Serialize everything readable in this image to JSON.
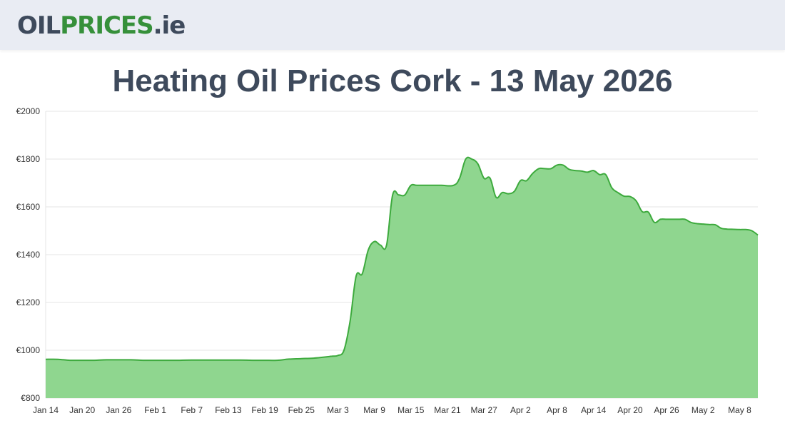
{
  "header": {
    "logo": {
      "part1": "OIL",
      "part2": "PRICES",
      "part3": ".ie"
    }
  },
  "colors": {
    "header_bg": "#e9ecf3",
    "logo_dark": "#3e4a5c",
    "logo_green": "#36903a",
    "line": "#3daa3d",
    "fill": "#8fd68f",
    "grid": "#e6e6e6"
  },
  "chart_data": {
    "type": "area",
    "title": "Heating Oil Prices Cork - 13 May 2026",
    "xlabel": "",
    "ylabel": "",
    "ylim": [
      800,
      2000
    ],
    "y_ticks": [
      800,
      1000,
      1200,
      1400,
      1600,
      1800,
      2000
    ],
    "y_tick_labels": [
      "€800",
      "€1000",
      "€1200",
      "€1400",
      "€1600",
      "€1800",
      "€2000"
    ],
    "grid": true,
    "legend": "none",
    "x_tick_labels": [
      "Jan 14",
      "Jan 20",
      "Jan 26",
      "Feb 1",
      "Feb 7",
      "Feb 13",
      "Feb 19",
      "Feb 25",
      "Mar 3",
      "Mar 9",
      "Mar 15",
      "Mar 21",
      "Mar 27",
      "Apr 2",
      "Apr 8",
      "Apr 14",
      "Apr 20",
      "Apr 26",
      "May 2",
      "May 8"
    ],
    "x_tick_every_days": 6,
    "series": [
      {
        "values": [
          [
            0,
            962
          ],
          [
            2,
            962
          ],
          [
            4,
            958
          ],
          [
            6,
            958
          ],
          [
            8,
            958
          ],
          [
            10,
            960
          ],
          [
            12,
            960
          ],
          [
            14,
            960
          ],
          [
            16,
            958
          ],
          [
            18,
            958
          ],
          [
            20,
            958
          ],
          [
            22,
            958
          ],
          [
            24,
            959
          ],
          [
            26,
            959
          ],
          [
            28,
            959
          ],
          [
            30,
            959
          ],
          [
            32,
            959
          ],
          [
            34,
            958
          ],
          [
            36,
            958
          ],
          [
            38,
            958
          ],
          [
            40,
            963
          ],
          [
            42,
            965
          ],
          [
            44,
            967
          ],
          [
            46,
            972
          ],
          [
            47,
            975
          ],
          [
            48,
            978
          ],
          [
            49,
            1000
          ],
          [
            50,
            1120
          ],
          [
            51,
            1310
          ],
          [
            52,
            1320
          ],
          [
            53,
            1420
          ],
          [
            54,
            1455
          ],
          [
            55,
            1440
          ],
          [
            56,
            1440
          ],
          [
            57,
            1650
          ],
          [
            58,
            1650
          ],
          [
            59,
            1650
          ],
          [
            60,
            1690
          ],
          [
            61,
            1690
          ],
          [
            63,
            1690
          ],
          [
            65,
            1690
          ],
          [
            67,
            1690
          ],
          [
            68,
            1720
          ],
          [
            69,
            1800
          ],
          [
            70,
            1800
          ],
          [
            71,
            1780
          ],
          [
            72,
            1720
          ],
          [
            73,
            1720
          ],
          [
            74,
            1640
          ],
          [
            75,
            1660
          ],
          [
            76,
            1655
          ],
          [
            77,
            1665
          ],
          [
            78,
            1710
          ],
          [
            79,
            1710
          ],
          [
            80,
            1740
          ],
          [
            81,
            1760
          ],
          [
            82,
            1760
          ],
          [
            83,
            1760
          ],
          [
            84,
            1775
          ],
          [
            85,
            1775
          ],
          [
            86,
            1757
          ],
          [
            87,
            1752
          ],
          [
            88,
            1750
          ],
          [
            89,
            1745
          ],
          [
            90,
            1752
          ],
          [
            91,
            1735
          ],
          [
            92,
            1735
          ],
          [
            93,
            1680
          ],
          [
            94,
            1660
          ],
          [
            95,
            1645
          ],
          [
            96,
            1643
          ],
          [
            97,
            1625
          ],
          [
            98,
            1580
          ],
          [
            99,
            1578
          ],
          [
            100,
            1535
          ],
          [
            101,
            1548
          ],
          [
            102,
            1548
          ],
          [
            103,
            1548
          ],
          [
            104,
            1548
          ],
          [
            105,
            1548
          ],
          [
            106,
            1535
          ],
          [
            107,
            1530
          ],
          [
            108,
            1528
          ],
          [
            109,
            1526
          ],
          [
            110,
            1525
          ],
          [
            111,
            1510
          ],
          [
            112,
            1507
          ],
          [
            113,
            1506
          ],
          [
            114,
            1505
          ],
          [
            115,
            1505
          ],
          [
            116,
            1500
          ],
          [
            117,
            1482
          ]
        ]
      }
    ]
  }
}
